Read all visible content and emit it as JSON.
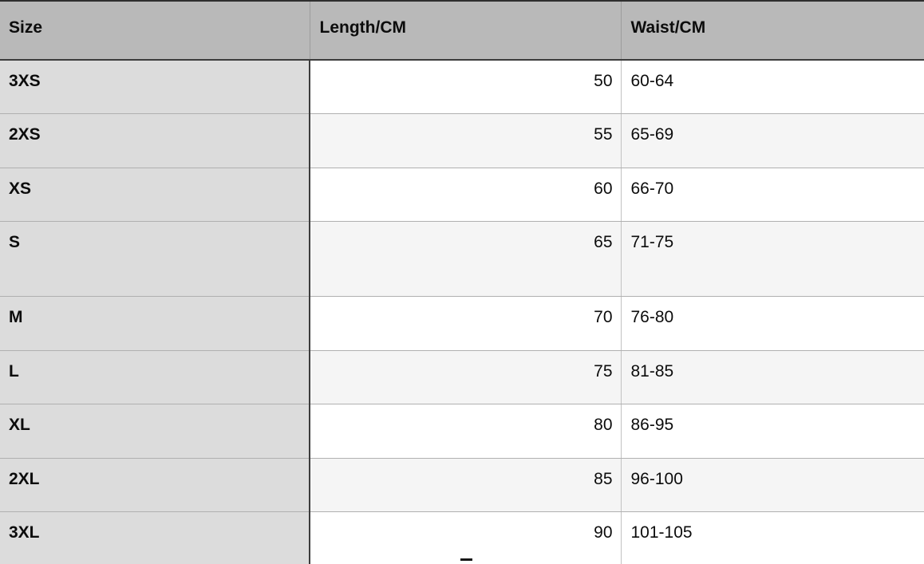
{
  "size_chart": {
    "columns": [
      "Size",
      "Length/CM",
      "Waist/CM"
    ],
    "rows": [
      {
        "size": "3XS",
        "length": "50",
        "waist": "60-64"
      },
      {
        "size": "2XS",
        "length": "55",
        "waist": "65-69"
      },
      {
        "size": "XS",
        "length": "60",
        "waist": "66-70"
      },
      {
        "size": "S",
        "length": "65",
        "waist": "71-75"
      },
      {
        "size": "M",
        "length": "70",
        "waist": "76-80"
      },
      {
        "size": "L",
        "length": "75",
        "waist": "81-85"
      },
      {
        "size": "XL",
        "length": "80",
        "waist": "86-95"
      },
      {
        "size": "2XL",
        "length": "85",
        "waist": "96-100"
      },
      {
        "size": "3XL",
        "length": "90",
        "waist": "101-105"
      }
    ],
    "colors": {
      "header_bg": "#b9b9b9",
      "size_column_bg": "#dcdcdc",
      "row_bg": "#ffffff",
      "row_stripe_bg": "#f5f5f5",
      "dark_border": "#3c3c3c",
      "light_border": "#b0b0b0"
    }
  }
}
